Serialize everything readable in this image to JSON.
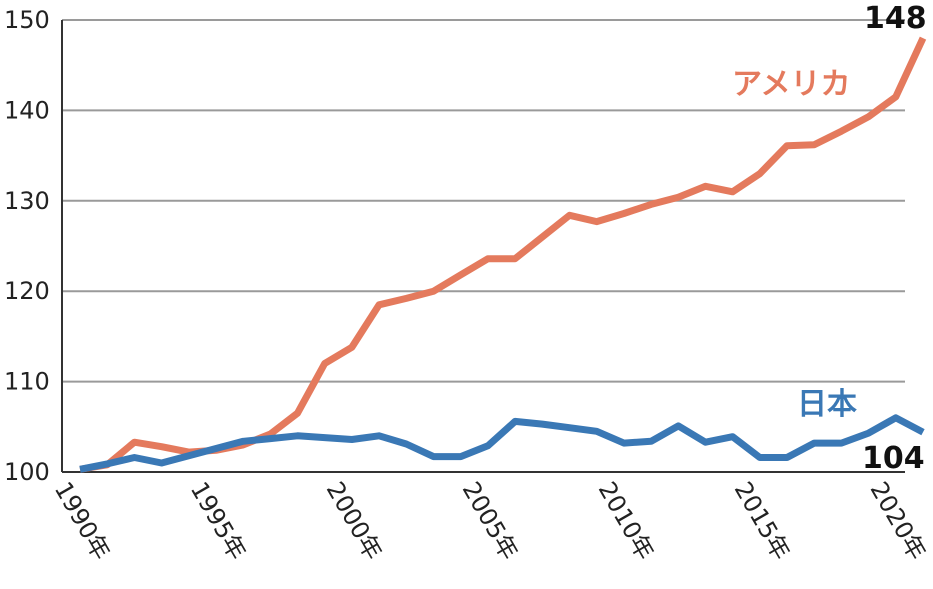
{
  "chart_data": {
    "type": "line",
    "title": "",
    "xlabel": "",
    "ylabel": "",
    "xlim": [
      1990,
      2021
    ],
    "ylim": [
      100,
      150
    ],
    "y_ticks": [
      "100",
      "110",
      "120",
      "130",
      "140",
      "150"
    ],
    "x_ticks": [
      {
        "value": 1990,
        "label": "1990年"
      },
      {
        "value": 1995,
        "label": "1995年"
      },
      {
        "value": 2000,
        "label": "2000年"
      },
      {
        "value": 2005,
        "label": "2005年"
      },
      {
        "value": 2010,
        "label": "2010年"
      },
      {
        "value": 2015,
        "label": "2015年"
      },
      {
        "value": 2020,
        "label": "2020年"
      }
    ],
    "grid": "horizontal",
    "series": [
      {
        "name": "アメリカ",
        "color": "#e47a5d",
        "end_label": "148",
        "x": [
          1990,
          1991,
          1992,
          1993,
          1994,
          1995,
          1996,
          1997,
          1998,
          1999,
          2000,
          2001,
          2002,
          2003,
          2004,
          2005,
          2006,
          2007,
          2008,
          2009,
          2010,
          2011,
          2012,
          2013,
          2014,
          2015,
          2016,
          2017,
          2018,
          2019,
          2020,
          2021
        ],
        "values": [
          100.3,
          100.8,
          103.3,
          102.8,
          102.2,
          102.4,
          103.0,
          104.2,
          106.5,
          112.0,
          113.8,
          118.5,
          119.2,
          120.0,
          121.8,
          123.6,
          123.6,
          126.0,
          128.4,
          127.7,
          128.6,
          129.6,
          130.4,
          131.6,
          131.0,
          133.0,
          136.1,
          136.2,
          137.7,
          139.3,
          141.5,
          148.0
        ]
      },
      {
        "name": "日本",
        "color": "#3a78b5",
        "end_label": "104",
        "x": [
          1990,
          1991,
          1992,
          1993,
          1994,
          1995,
          1996,
          1997,
          1998,
          1999,
          2000,
          2001,
          2002,
          2003,
          2004,
          2005,
          2006,
          2007,
          2008,
          2009,
          2010,
          2011,
          2012,
          2013,
          2014,
          2015,
          2016,
          2017,
          2018,
          2019,
          2020,
          2021
        ],
        "values": [
          100.3,
          100.9,
          101.6,
          101.0,
          101.8,
          102.6,
          103.4,
          103.7,
          104.0,
          103.8,
          103.6,
          104.0,
          103.1,
          101.7,
          101.7,
          102.9,
          105.6,
          105.3,
          104.9,
          104.5,
          103.2,
          103.4,
          105.1,
          103.3,
          103.9,
          101.6,
          101.6,
          103.2,
          103.2,
          104.3,
          106.0,
          104.4
        ]
      }
    ],
    "series_label_text": [
      {
        "series": 0,
        "text": "アメリカ"
      },
      {
        "series": 1,
        "text": "日本"
      }
    ]
  }
}
